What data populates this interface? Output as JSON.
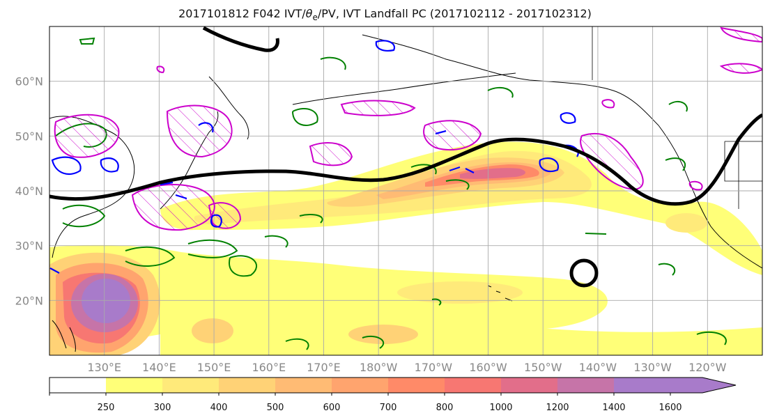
{
  "title": {
    "prefix": "2017101812 F042 IVT/",
    "theta": "θ",
    "theta_sub": "e",
    "suffix": "/PV, IVT Landfall PC (2017102112 - 2017102312)"
  },
  "map": {
    "lat_labels": [
      "60°N",
      "50°N",
      "40°N",
      "30°N",
      "20°N"
    ],
    "lat_values": [
      60,
      50,
      40,
      30,
      20
    ],
    "lon_labels": [
      "130°E",
      "140°E",
      "150°E",
      "160°E",
      "170°E",
      "180°W",
      "170°W",
      "160°W",
      "150°W",
      "140°W",
      "130°W",
      "120°W"
    ],
    "lon_values": [
      130,
      140,
      150,
      160,
      170,
      180,
      190,
      200,
      210,
      220,
      230,
      240
    ],
    "lon_range": [
      120,
      250
    ],
    "lat_range": [
      10,
      70
    ],
    "gridlines": true
  },
  "colorbar": {
    "ticks": [
      "250",
      "300",
      "400",
      "500",
      "600",
      "700",
      "800",
      "1000",
      "1200",
      "1400",
      "1600"
    ],
    "colors": [
      "#ffffff",
      "#ffff78",
      "#ffea7a",
      "#ffd276",
      "#ffbb74",
      "#ffa46e",
      "#ff8a68",
      "#f77772",
      "#e26e8a",
      "#c674a8",
      "#a87bca",
      "#a87bca"
    ],
    "extend": "max"
  },
  "colors": {
    "jet_contour": "#000000",
    "theta_contour": "#008000",
    "pv_positive": "#cc00cc",
    "pv_negative": "#0000ff",
    "coast": "#000000"
  }
}
